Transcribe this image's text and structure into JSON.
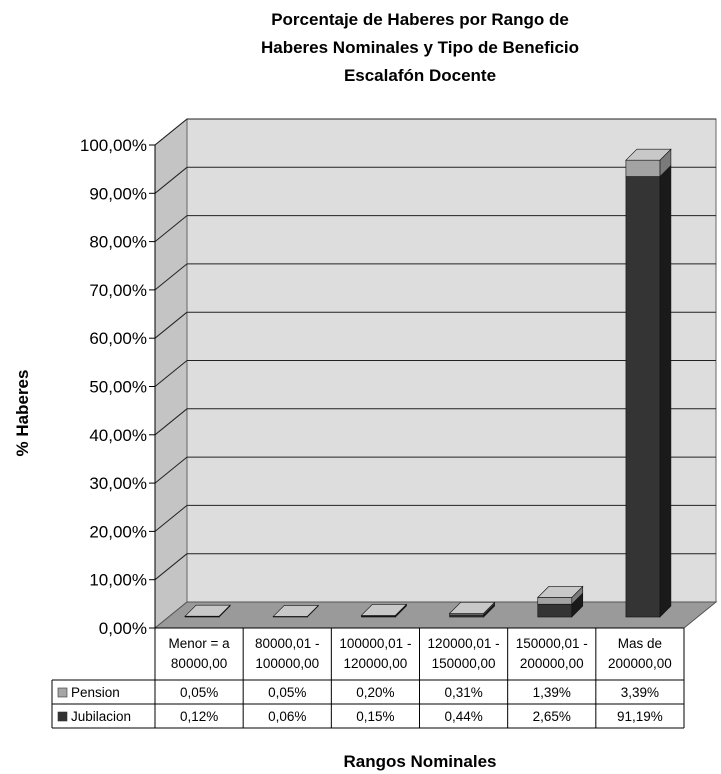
{
  "chart_data": {
    "type": "bar",
    "stacked": true,
    "view": "3d",
    "title_lines": [
      "Porcentaje de Haberes por Rango de",
      "Haberes Nominales y Tipo de Beneficio",
      "Escalafón Docente"
    ],
    "xlabel": "Rangos Nominales",
    "ylabel": "% Haberes",
    "ylim": [
      0,
      100
    ],
    "ytick_values": [
      0,
      10,
      20,
      30,
      40,
      50,
      60,
      70,
      80,
      90,
      100
    ],
    "ytick_labels": [
      "0,00%",
      "10,00%",
      "20,00%",
      "30,00%",
      "40,00%",
      "50,00%",
      "60,00%",
      "70,00%",
      "80,00%",
      "90,00%",
      "100,00%"
    ],
    "grid": true,
    "categories": [
      [
        "Menor = a",
        "80000,00"
      ],
      [
        "80000,01 -",
        "100000,00"
      ],
      [
        "100000,01 -",
        "120000,00"
      ],
      [
        "120000,01 -",
        "150000,00"
      ],
      [
        "150000,01 -",
        "200000,00"
      ],
      [
        "Mas de",
        "200000,00"
      ]
    ],
    "series": [
      {
        "name": "Pension",
        "values": [
          0.05,
          0.05,
          0.2,
          0.31,
          1.39,
          3.39
        ],
        "labels": [
          "0,05%",
          "0,05%",
          "0,20%",
          "0,31%",
          "1,39%",
          "3,39%"
        ],
        "color": "#a6a6a6"
      },
      {
        "name": "Jubilacion",
        "values": [
          0.12,
          0.06,
          0.15,
          0.44,
          2.65,
          91.19
        ],
        "labels": [
          "0,12%",
          "0,06%",
          "0,15%",
          "0,44%",
          "2,65%",
          "91,19%"
        ],
        "color": "#333333"
      }
    ],
    "legend": "data-table"
  }
}
